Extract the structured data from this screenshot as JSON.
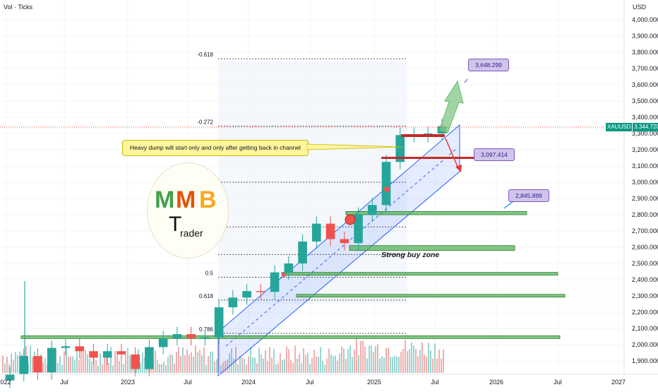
{
  "header": {
    "volume_label": "Vol · Ticks",
    "currency": "USD"
  },
  "price_badge": {
    "symbol": "XAUUSD",
    "price": "3,344.720"
  },
  "price_axis": {
    "labels": [
      "4,000.000",
      "3,900.000",
      "3,800.000",
      "3,700.000",
      "3,600.000",
      "3,500.000",
      "3,400.000",
      "3,300.000",
      "3,200.000",
      "3,100.000",
      "3,000.000",
      "2,900.000",
      "2,800.000",
      "2,700.000",
      "2,600.000",
      "2,500.000",
      "2,400.000",
      "2,300.000",
      "2,200.000",
      "2,100.000",
      "2,000.000",
      "1,900.000"
    ]
  },
  "time_axis": {
    "labels": [
      "022",
      "Jul",
      "2023",
      "Jul",
      "2024",
      "Jul",
      "2025",
      "Jul",
      "2026",
      "Jul",
      "2027"
    ]
  },
  "fib_levels": [
    {
      "label": "-0.618",
      "price": 3760
    },
    {
      "label": "-0.272",
      "price": 3345
    },
    {
      "label": "0.5",
      "price": 2415
    },
    {
      "label": "0.618",
      "price": 2275
    },
    {
      "label": "0.786",
      "price": 2070
    }
  ],
  "annotations": {
    "callout": "Heavy dump will start only and only after getting back in channel",
    "zone_text": "Strong buy zone",
    "target_high": "3,648.299",
    "target_mid": "3,097.414",
    "target_low": "2,845.899"
  },
  "support_zones": [
    {
      "price_top": 2820,
      "price_bottom": 2800
    },
    {
      "price_top": 2610,
      "price_bottom": 2580
    },
    {
      "price_top": 2445,
      "price_bottom": 2435
    },
    {
      "price_top": 2310,
      "price_bottom": 2295
    },
    {
      "price_top": 2055,
      "price_bottom": 2040
    }
  ],
  "colors": {
    "bull": "#26a69a",
    "bear": "#ef5350",
    "channel": "#2962ff",
    "zone": "#4caf50",
    "badge": "#089981",
    "callout_bg": "#fff59d",
    "target_bg": "#d1c4e9"
  },
  "logo": {
    "text": "MMB Trader"
  },
  "chart_data": {
    "type": "candlestick",
    "symbol": "XAUUSD",
    "y_unit": "USD",
    "ylim": [
      1850,
      4050
    ],
    "x": [
      "2022-12",
      "2023-01",
      "2023-02",
      "2023-03",
      "2023-04",
      "2023-05",
      "2023-06",
      "2023-07",
      "2023-08",
      "2023-09",
      "2023-10",
      "2023-11",
      "2023-12",
      "2024-01",
      "2024-02",
      "2024-03",
      "2024-04",
      "2024-05",
      "2024-06",
      "2024-07",
      "2024-08",
      "2024-09",
      "2024-10",
      "2024-11",
      "2024-12",
      "2025-01",
      "2025-02",
      "2025-03",
      "2025-04",
      "2025-05",
      "2025-06",
      "2025-07"
    ],
    "close": [
      1820,
      1930,
      1830,
      1980,
      1990,
      1960,
      1920,
      1960,
      1940,
      1850,
      1985,
      2040,
      2065,
      2040,
      2045,
      2230,
      2290,
      2330,
      2325,
      2445,
      2500,
      2635,
      2745,
      2650,
      2625,
      2800,
      2860,
      3125,
      3290,
      3290,
      3300,
      3345
    ],
    "last_price": 3344.72
  }
}
